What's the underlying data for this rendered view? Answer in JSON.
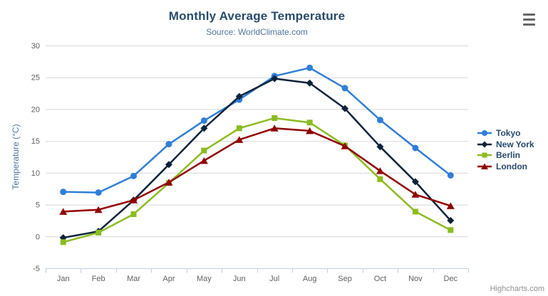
{
  "chart_data": {
    "type": "line",
    "title": "Monthly Average Temperature",
    "subtitle": "Source: WorldClimate.com",
    "xlabel": "",
    "ylabel": "Temperature (°C)",
    "ylim": [
      -5,
      30
    ],
    "yticks": [
      -5,
      0,
      5,
      10,
      15,
      20,
      25,
      30
    ],
    "grid": true,
    "legend_position": "right",
    "categories": [
      "Jan",
      "Feb",
      "Mar",
      "Apr",
      "May",
      "Jun",
      "Jul",
      "Aug",
      "Sep",
      "Oct",
      "Nov",
      "Dec"
    ],
    "series": [
      {
        "name": "Tokyo",
        "color": "#2f7ed8",
        "marker": "circle",
        "values": [
          7.0,
          6.9,
          9.5,
          14.5,
          18.2,
          21.5,
          25.2,
          26.5,
          23.3,
          18.3,
          13.9,
          9.6
        ]
      },
      {
        "name": "New York",
        "color": "#0d233a",
        "marker": "diamond",
        "values": [
          -0.2,
          0.8,
          5.7,
          11.3,
          17.0,
          22.0,
          24.8,
          24.1,
          20.1,
          14.1,
          8.6,
          2.5
        ]
      },
      {
        "name": "Berlin",
        "color": "#8bbc21",
        "marker": "square",
        "values": [
          -0.9,
          0.6,
          3.5,
          8.4,
          13.5,
          17.0,
          18.6,
          17.9,
          14.3,
          9.0,
          3.9,
          1.0
        ]
      },
      {
        "name": "London",
        "color": "#910000",
        "marker": "triangle",
        "values": [
          3.9,
          4.2,
          5.7,
          8.5,
          11.9,
          15.2,
          17.0,
          16.6,
          14.2,
          10.3,
          6.6,
          4.8
        ]
      }
    ]
  },
  "credits": "Highcharts.com",
  "export_menu": {
    "icon": "hamburger-menu-icon"
  },
  "theme": {
    "title_color": "#274b6d",
    "subtitle_color": "#4d759e",
    "axis_label_color": "#606060",
    "axis_title_color": "#4d759e",
    "grid_color": "#d8d8d8",
    "axis_line_color": "#c0d0e0",
    "legend_text_color": "#274b6d",
    "credits_color": "#909090",
    "menu_icon_color": "#666666",
    "background": "#ffffff"
  }
}
